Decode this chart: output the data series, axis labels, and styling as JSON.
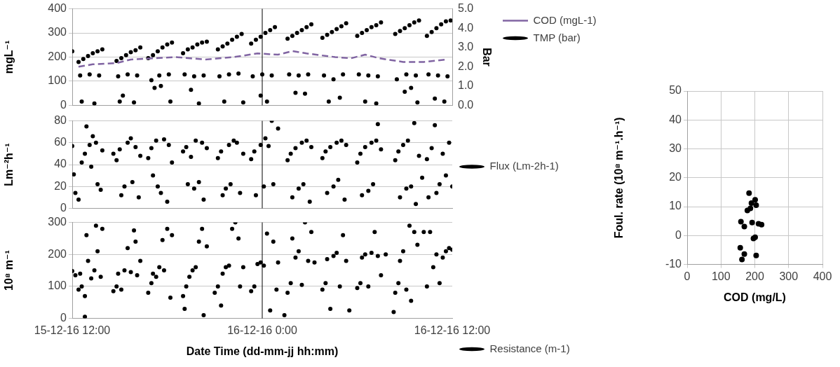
{
  "chart_data": [
    {
      "type": "scatter",
      "ylabel": "mgL⁻¹",
      "y2label": "Bar",
      "xlim": [
        "--12-15T12:00",
        "--12-16T12:00"
      ],
      "ylim": [
        0,
        400
      ],
      "yticks": [
        0,
        100,
        200,
        300,
        400
      ],
      "y2lim": [
        0,
        5
      ],
      "y2ticks": [
        {
          "value": 0,
          "label": "0.0"
        },
        {
          "value": 1,
          "label": "1.0"
        },
        {
          "value": 2,
          "label": "2.0"
        },
        {
          "value": 3,
          "label": "3.0"
        },
        {
          "value": 4,
          "label": "4.0"
        },
        {
          "value": 5,
          "label": "5.0"
        }
      ],
      "grid": "y",
      "legend": "top right",
      "tick_labels": "y",
      "ref_lines": [
        {
          "axis": "x",
          "value": "--12-16T00:00",
          "color": "#000000"
        }
      ],
      "series": [
        {
          "name": "COD (mgL-1)",
          "type": "line",
          "color": "#8064a2",
          "line_style": "dashed",
          "marker": "none",
          "x": [
            "--12-15T12:24",
            "--12-15T13:18",
            "--12-15T14:48",
            "--12-15T15:42",
            "--12-15T18:30",
            "--12-15T20:24",
            "--12-15T22:12",
            "--12-15T23:42",
            "--12-16T01:00",
            "--12-16T01:54",
            "--12-16T02:48",
            "--12-16T04:36",
            "--12-16T05:36",
            "--12-16T06:30",
            "--12-16T07:24",
            "--12-16T08:54",
            "--12-16T10:12",
            "--12-16T11:42"
          ],
          "values": [
            160,
            170,
            175,
            190,
            200,
            190,
            200,
            215,
            210,
            225,
            215,
            200,
            195,
            210,
            195,
            180,
            180,
            190
          ]
        },
        {
          "name": "TMP (bar)",
          "type": "scatter",
          "axis": "y2",
          "color": "#000000",
          "marker": "circle",
          "x": [
            "--12-15T12:00",
            "--12-15T12:24",
            "--12-15T12:42",
            "--12-15T13:00",
            "--12-15T13:18",
            "--12-15T13:36",
            "--12-15T13:54",
            "--12-15T12:30",
            "--12-15T13:06",
            "--12-15T13:42",
            "--12-15T12:36",
            "--12-15T13:24",
            "--12-15T14:48",
            "--12-15T15:06",
            "--12-15T15:24",
            "--12-15T15:42",
            "--12-15T16:00",
            "--12-15T16:18",
            "--12-15T14:54",
            "--12-15T15:30",
            "--12-15T16:06",
            "--12-15T15:00",
            "--12-15T15:12",
            "--12-15T15:54",
            "--12-15T16:48",
            "--12-15T17:06",
            "--12-15T17:24",
            "--12-15T17:42",
            "--12-15T18:00",
            "--12-15T18:18",
            "--12-15T17:00",
            "--12-15T17:30",
            "--12-15T18:06",
            "--12-15T17:12",
            "--12-15T17:36",
            "--12-15T18:12",
            "--12-15T19:00",
            "--12-15T19:18",
            "--12-15T19:36",
            "--12-15T19:54",
            "--12-15T20:12",
            "--12-15T20:30",
            "--12-15T19:06",
            "--12-15T19:42",
            "--12-15T20:18",
            "--12-15T19:30",
            "--12-15T20:00",
            "--12-15T21:12",
            "--12-15T21:30",
            "--12-15T21:48",
            "--12-15T22:06",
            "--12-15T22:24",
            "--12-15T22:42",
            "--12-15T21:18",
            "--12-15T21:54",
            "--12-15T22:30",
            "--12-15T21:36",
            "--12-15T22:48",
            "--12-15T23:18",
            "--12-15T23:36",
            "--12-15T23:54",
            "--12-16T00:12",
            "--12-16T00:30",
            "--12-16T00:48",
            "--12-15T23:24",
            "--12-16T00:00",
            "--12-16T00:36",
            "--12-15T23:54",
            "--12-16T00:18",
            "--12-16T01:36",
            "--12-16T01:54",
            "--12-16T02:12",
            "--12-16T02:30",
            "--12-16T02:48",
            "--12-16T03:06",
            "--12-16T01:42",
            "--12-16T02:18",
            "--12-16T02:54",
            "--12-16T02:06",
            "--12-16T02:42",
            "--12-16T03:48",
            "--12-16T04:06",
            "--12-16T04:24",
            "--12-16T04:42",
            "--12-16T05:00",
            "--12-16T05:18",
            "--12-16T03:54",
            "--12-16T04:30",
            "--12-16T05:06",
            "--12-16T04:12",
            "--12-16T04:54",
            "--12-16T06:00",
            "--12-16T06:18",
            "--12-16T06:36",
            "--12-16T06:54",
            "--12-16T07:12",
            "--12-16T07:30",
            "--12-16T06:06",
            "--12-16T06:42",
            "--12-16T07:18",
            "--12-16T06:30",
            "--12-16T07:12",
            "--12-16T08:24",
            "--12-16T08:42",
            "--12-16T09:00",
            "--12-16T09:18",
            "--12-16T09:36",
            "--12-16T09:54",
            "--12-16T08:30",
            "--12-16T09:06",
            "--12-16T09:42",
            "--12-16T09:00",
            "--12-16T09:24",
            "--12-16T09:48",
            "--12-16T10:24",
            "--12-16T10:42",
            "--12-16T11:00",
            "--12-16T11:18",
            "--12-16T11:36",
            "--12-16T11:54",
            "--12-16T10:30",
            "--12-16T11:06",
            "--12-16T11:42",
            "--12-16T10:54",
            "--12-16T11:30"
          ],
          "values": [
            2.8,
            2.25,
            2.4,
            2.55,
            2.7,
            2.8,
            2.9,
            1.55,
            1.6,
            1.55,
            0.2,
            0.1,
            2.3,
            2.45,
            2.6,
            2.75,
            2.85,
            3.0,
            1.5,
            1.6,
            1.55,
            0.2,
            0.5,
            0.15,
            2.45,
            2.6,
            2.8,
            3.0,
            3.15,
            3.25,
            1.3,
            1.55,
            1.6,
            0.9,
            1.0,
            0.2,
            2.7,
            2.9,
            3.0,
            3.15,
            3.25,
            3.3,
            1.6,
            1.5,
            1.55,
            0.8,
            0.1,
            2.9,
            3.05,
            3.2,
            3.4,
            3.55,
            3.7,
            1.5,
            1.6,
            1.65,
            0.2,
            0.15,
            3.2,
            3.4,
            3.55,
            3.75,
            3.9,
            4.05,
            1.5,
            1.6,
            1.55,
            0.5,
            0.2,
            3.45,
            3.6,
            3.75,
            3.9,
            4.05,
            4.2,
            1.6,
            1.55,
            1.6,
            0.65,
            0.6,
            3.5,
            3.65,
            3.8,
            3.95,
            4.1,
            4.25,
            1.55,
            1.35,
            1.6,
            0.2,
            0.4,
            3.6,
            3.75,
            3.9,
            4.05,
            4.15,
            4.3,
            1.6,
            1.55,
            1.5,
            0.2,
            0.1,
            3.7,
            3.85,
            4.0,
            4.15,
            4.3,
            4.4,
            1.35,
            1.6,
            1.55,
            0.7,
            0.9,
            0.15,
            3.6,
            3.8,
            4.0,
            4.2,
            4.35,
            4.4,
            1.6,
            1.55,
            1.5,
            0.35,
            0.2
          ]
        }
      ]
    },
    {
      "type": "scatter",
      "ylabel": "Lm⁻²h⁻¹",
      "xlim": [
        "--12-15T12:00",
        "--12-16T12:00"
      ],
      "ylim": [
        0,
        80
      ],
      "yticks": [
        0,
        20,
        40,
        60,
        80
      ],
      "grid": "y",
      "legend": "right",
      "tick_labels": "y",
      "ref_lines": [
        {
          "axis": "x",
          "value": "--12-16T00:00",
          "color": "#000000"
        }
      ],
      "series": [
        {
          "name": "Flux (Lm-2h-1)",
          "color": "#000000",
          "marker": "circle",
          "x": [
            "--12-15T12:00",
            "--12-15T12:06",
            "--12-15T12:12",
            "--12-15T12:24",
            "--12-15T12:36",
            "--12-15T12:48",
            "--12-15T12:54",
            "--12-15T13:06",
            "--12-15T13:12",
            "--12-15T13:18",
            "--12-15T13:30",
            "--12-15T13:36",
            "--12-15T13:48",
            "--12-15T13:54",
            "--12-15T14:36",
            "--12-15T14:48",
            "--12-15T15:00",
            "--12-15T15:06",
            "--12-15T15:18",
            "--12-15T15:30",
            "--12-15T15:42",
            "--12-15T15:48",
            "--12-15T16:00",
            "--12-15T16:12",
            "--12-15T16:18",
            "--12-15T16:48",
            "--12-15T17:00",
            "--12-15T17:06",
            "--12-15T17:18",
            "--12-15T17:24",
            "--12-15T17:36",
            "--12-15T17:48",
            "--12-15T18:00",
            "--12-15T18:06",
            "--12-15T18:18",
            "--12-15T19:00",
            "--12-15T19:12",
            "--12-15T19:18",
            "--12-15T19:30",
            "--12-15T19:42",
            "--12-15T19:48",
            "--12-15T20:00",
            "--12-15T20:12",
            "--12-15T20:18",
            "--12-15T20:30",
            "--12-15T21:12",
            "--12-15T21:24",
            "--12-15T21:30",
            "--12-15T21:42",
            "--12-15T21:54",
            "--12-15T22:00",
            "--12-15T22:12",
            "--12-15T22:24",
            "--12-15T22:36",
            "--12-15T22:48",
            "--12-15T23:18",
            "--12-15T23:30",
            "--12-15T23:36",
            "--12-15T23:54",
            "--12-16T00:06",
            "--12-16T00:12",
            "--12-16T00:24",
            "--12-16T00:36",
            "--12-16T00:42",
            "--12-16T01:00",
            "--12-16T01:36",
            "--12-16T01:48",
            "--12-16T01:54",
            "--12-16T02:06",
            "--12-16T02:18",
            "--12-16T02:30",
            "--12-16T02:36",
            "--12-16T02:48",
            "--12-16T03:00",
            "--12-16T03:06",
            "--12-16T03:48",
            "--12-16T04:00",
            "--12-16T04:06",
            "--12-16T04:18",
            "--12-16T04:30",
            "--12-16T04:42",
            "--12-16T04:48",
            "--12-16T05:00",
            "--12-16T05:12",
            "--12-16T05:18",
            "--12-16T06:00",
            "--12-16T06:12",
            "--12-16T06:18",
            "--12-16T06:30",
            "--12-16T06:42",
            "--12-16T06:54",
            "--12-16T07:00",
            "--12-16T07:12",
            "--12-16T07:18",
            "--12-16T07:30",
            "--12-16T08:24",
            "--12-16T08:36",
            "--12-16T08:42",
            "--12-16T08:54",
            "--12-16T09:06",
            "--12-16T09:12",
            "--12-16T09:24",
            "--12-16T09:36",
            "--12-16T09:42",
            "--12-16T09:54",
            "--12-16T10:06",
            "--12-16T10:24",
            "--12-16T10:30",
            "--12-16T10:42",
            "--12-16T10:54",
            "--12-16T11:00",
            "--12-16T11:12",
            "--12-16T11:24",
            "--12-16T11:36",
            "--12-16T11:48",
            "--12-16T12:00"
          ],
          "values": [
            57,
            31,
            14,
            8,
            42,
            50,
            75,
            58,
            38,
            66,
            60,
            22,
            17,
            53,
            50,
            44,
            54,
            12,
            20,
            60,
            64,
            24,
            56,
            10,
            48,
            46,
            55,
            30,
            62,
            20,
            14,
            63,
            6,
            58,
            42,
            52,
            56,
            22,
            47,
            18,
            62,
            24,
            60,
            8,
            55,
            46,
            52,
            12,
            18,
            58,
            22,
            62,
            60,
            14,
            50,
            45,
            52,
            12,
            58,
            20,
            64,
            57,
            80,
            22,
            73,
            44,
            50,
            10,
            55,
            18,
            60,
            22,
            62,
            6,
            56,
            46,
            52,
            14,
            56,
            20,
            60,
            26,
            62,
            8,
            58,
            42,
            50,
            12,
            56,
            16,
            60,
            22,
            62,
            77,
            54,
            44,
            52,
            10,
            58,
            18,
            62,
            20,
            78,
            4,
            48,
            28,
            45,
            10,
            55,
            76,
            14,
            22,
            50,
            30,
            60,
            20
          ]
        }
      ]
    },
    {
      "type": "scatter",
      "ylabel": "10⁸ m⁻¹",
      "xlabel": "Date Time (dd-mm-jj hh:mm)",
      "xlim": [
        "--12-15T12:00",
        "--12-16T12:00"
      ],
      "xticks": [
        {
          "value": "--12-15T12:00",
          "label": "15-12-16 12:00"
        },
        {
          "value": "--12-16T00:00",
          "label": "16-12-16 0:00"
        },
        {
          "value": "--12-16T12:00",
          "label": "16-12-16 12:00"
        }
      ],
      "ylim": [
        0,
        300
      ],
      "yticks": [
        0,
        100,
        200,
        300
      ],
      "grid": "y",
      "legend": "bottom right",
      "ref_lines": [
        {
          "axis": "x",
          "value": "--12-16T00:00",
          "color": "#000000"
        }
      ],
      "series": [
        {
          "name": "Resistance (m-1)",
          "color": "#000000",
          "marker": "circle",
          "x": [
            "--12-15T12:00",
            "--12-15T12:12",
            "--12-15T12:24",
            "--12-15T12:30",
            "--12-15T12:36",
            "--12-15T12:48",
            "--12-15T12:54",
            "--12-15T13:00",
            "--12-15T13:12",
            "--12-15T13:24",
            "--12-15T13:30",
            "--12-15T13:36",
            "--12-15T13:48",
            "--12-15T13:54",
            "--12-15T12:48",
            "--12-15T14:36",
            "--12-15T14:48",
            "--12-15T14:54",
            "--12-15T15:06",
            "--12-15T15:18",
            "--12-15T15:30",
            "--12-15T15:42",
            "--12-15T15:54",
            "--12-15T16:00",
            "--12-15T16:06",
            "--12-15T16:18",
            "--12-15T16:48",
            "--12-15T17:00",
            "--12-15T17:06",
            "--12-15T17:18",
            "--12-15T17:30",
            "--12-15T17:42",
            "--12-15T17:48",
            "--12-15T18:00",
            "--12-15T18:12",
            "--12-15T18:18",
            "--12-15T19:00",
            "--12-15T19:06",
            "--12-15T19:12",
            "--12-15T19:24",
            "--12-15T19:36",
            "--12-15T19:48",
            "--12-15T20:00",
            "--12-15T20:12",
            "--12-15T20:18",
            "--12-15T20:30",
            "--12-15T21:00",
            "--12-15T21:12",
            "--12-15T21:24",
            "--12-15T21:30",
            "--12-15T21:42",
            "--12-15T21:54",
            "--12-15T22:06",
            "--12-15T22:18",
            "--12-15T22:30",
            "--12-15T22:36",
            "--12-15T22:48",
            "--12-15T23:18",
            "--12-15T23:30",
            "--12-15T23:42",
            "--12-15T23:54",
            "--12-16T00:06",
            "--12-16T00:18",
            "--12-16T00:30",
            "--12-16T00:42",
            "--12-16T00:54",
            "--12-16T01:00",
            "--12-16T01:24",
            "--12-16T01:36",
            "--12-16T01:48",
            "--12-16T01:54",
            "--12-16T02:06",
            "--12-16T02:18",
            "--12-16T02:30",
            "--12-16T02:42",
            "--12-16T02:54",
            "--12-16T03:06",
            "--12-16T03:18",
            "--12-16T03:48",
            "--12-16T04:00",
            "--12-16T04:06",
            "--12-16T04:18",
            "--12-16T04:30",
            "--12-16T04:42",
            "--12-16T04:54",
            "--12-16T05:06",
            "--12-16T05:18",
            "--12-16T05:30",
            "--12-16T06:00",
            "--12-16T06:12",
            "--12-16T06:18",
            "--12-16T06:30",
            "--12-16T06:42",
            "--12-16T06:54",
            "--12-16T07:06",
            "--12-16T07:18",
            "--12-16T07:30",
            "--12-16T07:48",
            "--12-16T08:18",
            "--12-16T08:24",
            "--12-16T08:36",
            "--12-16T08:42",
            "--12-16T08:54",
            "--12-16T09:06",
            "--12-16T09:18",
            "--12-16T09:24",
            "--12-16T09:36",
            "--12-16T09:48",
            "--12-16T10:12",
            "--12-16T10:24",
            "--12-16T10:36",
            "--12-16T10:48",
            "--12-16T11:00",
            "--12-16T11:12",
            "--12-16T11:24",
            "--12-16T11:36",
            "--12-16T11:48",
            "--12-16T12:00"
          ],
          "values": [
            148,
            135,
            90,
            140,
            100,
            70,
            260,
            180,
            125,
            150,
            290,
            210,
            130,
            280,
            5,
            85,
            100,
            140,
            90,
            150,
            220,
            145,
            275,
            240,
            135,
            180,
            80,
            110,
            140,
            130,
            160,
            245,
            150,
            280,
            65,
            260,
            70,
            30,
            100,
            130,
            150,
            160,
            240,
            280,
            10,
            225,
            80,
            100,
            40,
            140,
            160,
            165,
            280,
            300,
            250,
            100,
            160,
            85,
            100,
            170,
            175,
            165,
            265,
            25,
            240,
            90,
            175,
            10,
            80,
            110,
            250,
            190,
            210,
            105,
            300,
            180,
            270,
            175,
            90,
            110,
            185,
            30,
            195,
            205,
            100,
            260,
            180,
            25,
            95,
            110,
            190,
            200,
            100,
            205,
            270,
            195,
            135,
            200,
            20,
            80,
            110,
            180,
            210,
            90,
            290,
            55,
            270,
            230,
            270,
            100,
            270,
            160,
            200,
            110,
            190,
            210,
            220,
            215
          ]
        }
      ]
    },
    {
      "type": "scatter",
      "ylabel": "Foul. rate (10⁸ m⁻¹.h⁻¹)",
      "xlabel": "COD (mg/L)",
      "xlim": [
        0,
        400
      ],
      "xticks": [
        0,
        100,
        200,
        300,
        400
      ],
      "ylim": [
        -10,
        50
      ],
      "yticks": [
        -10,
        0,
        10,
        20,
        30,
        40,
        50
      ],
      "grid": true,
      "marker": "circle",
      "series": [
        {
          "color": "#000000",
          "x": [
            183,
            201,
            190,
            204,
            187,
            178,
            159,
            192,
            211,
            220,
            169,
            201,
            196,
            157,
            169,
            204,
            162
          ],
          "values": [
            14.7,
            12.4,
            11.2,
            10.5,
            9.4,
            8.7,
            4.8,
            4.5,
            4.1,
            3.8,
            3.1,
            -0.6,
            -1.0,
            -4.2,
            -6.4,
            -6.9,
            -8.3
          ]
        }
      ]
    }
  ]
}
